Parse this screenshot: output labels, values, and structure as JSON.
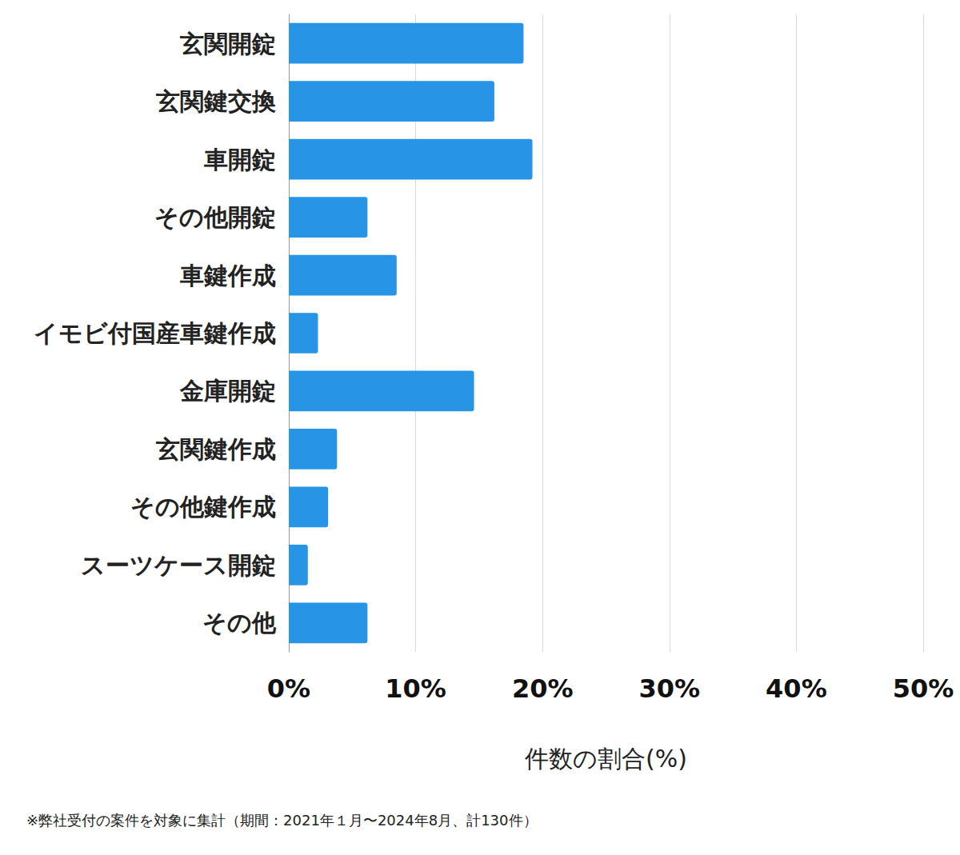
{
  "chart_data": {
    "type": "bar",
    "orientation": "horizontal",
    "categories": [
      "玄関開錠",
      "玄関鍵交換",
      "車開錠",
      "その他開錠",
      "車鍵作成",
      "イモビ付国産車鍵作成",
      "金庫開錠",
      "玄関鍵作成",
      "その他鍵作成",
      "スーツケース開錠",
      "その他"
    ],
    "values": [
      18.5,
      16.2,
      19.2,
      6.2,
      8.5,
      2.3,
      14.6,
      3.8,
      3.1,
      1.5,
      6.2
    ],
    "color": "#2794e6",
    "x_label": "件数の割合(%)",
    "xlim": [
      0,
      50
    ],
    "xticks": [
      {
        "value": 0,
        "label": "0%"
      },
      {
        "value": 10,
        "label": "10%"
      },
      {
        "value": 20,
        "label": "20%"
      },
      {
        "value": 30,
        "label": "30%"
      },
      {
        "value": 40,
        "label": "40%"
      },
      {
        "value": 50,
        "label": "50%"
      }
    ],
    "grid": true,
    "note": "※弊社受付の案件を対象に集計（期間：2021年１月〜2024年8月、計130件）"
  }
}
